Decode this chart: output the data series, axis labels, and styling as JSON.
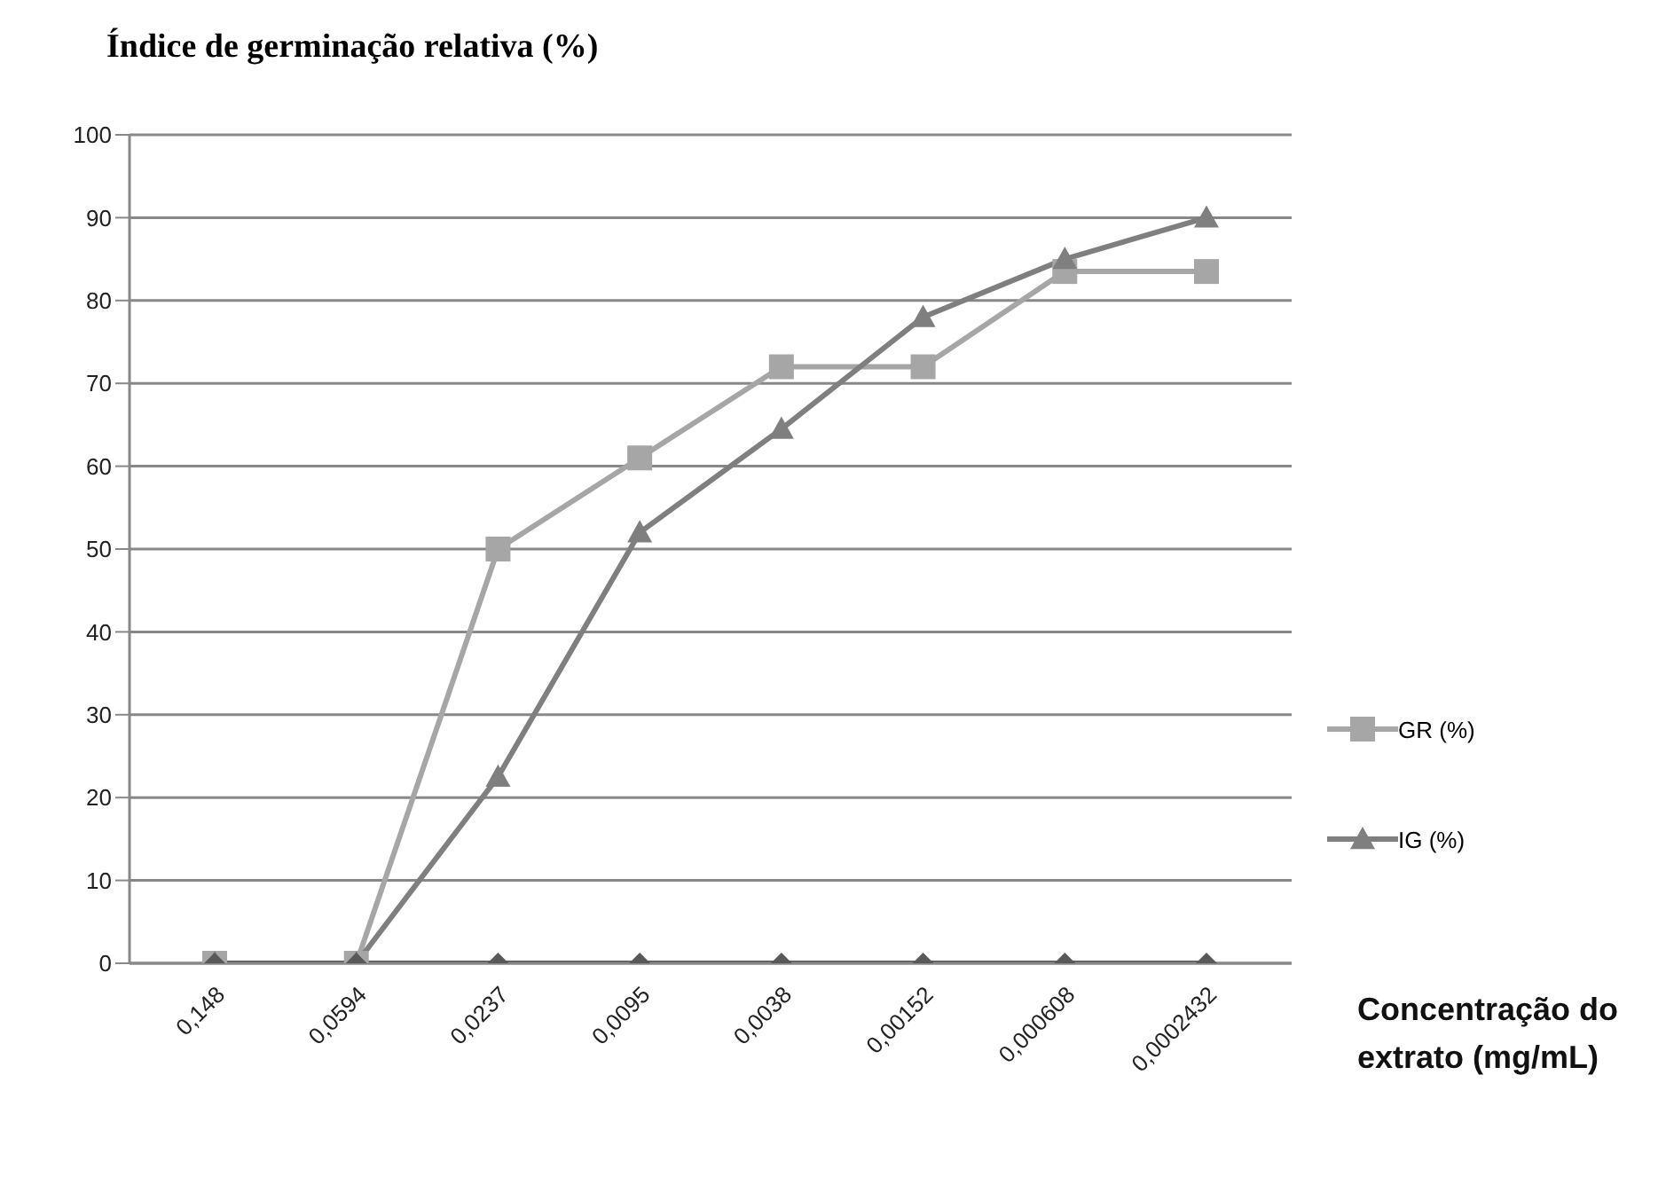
{
  "chart_data": {
    "type": "line",
    "ylabel": "Índice de germinação relativa (%)",
    "xlabel": "Concentração do extrato (mg/mL)",
    "categories": [
      "0,148",
      "0,0594",
      "0,0237",
      "0,0095",
      "0,0038",
      "0,00152",
      "0,000608",
      "0,0002432"
    ],
    "series": [
      {
        "name": "GR (%)",
        "color": "#a6a6a6",
        "marker": "square",
        "values": [
          0,
          0,
          50,
          61,
          72,
          72,
          83.5,
          83.5
        ]
      },
      {
        "name": "IG (%)",
        "color": "#7f7f7f",
        "marker": "triangle",
        "values": [
          0,
          0,
          22.5,
          52,
          64.5,
          78,
          85,
          90
        ]
      },
      {
        "color": "#595959",
        "marker": "diamond",
        "values": [
          0,
          0,
          0,
          0,
          0,
          0,
          0,
          0
        ]
      }
    ],
    "ylim": [
      0,
      100
    ],
    "yticks": [
      0,
      10,
      20,
      30,
      40,
      50,
      60,
      70,
      80,
      90,
      100
    ],
    "grid": "y",
    "legend": "right"
  }
}
